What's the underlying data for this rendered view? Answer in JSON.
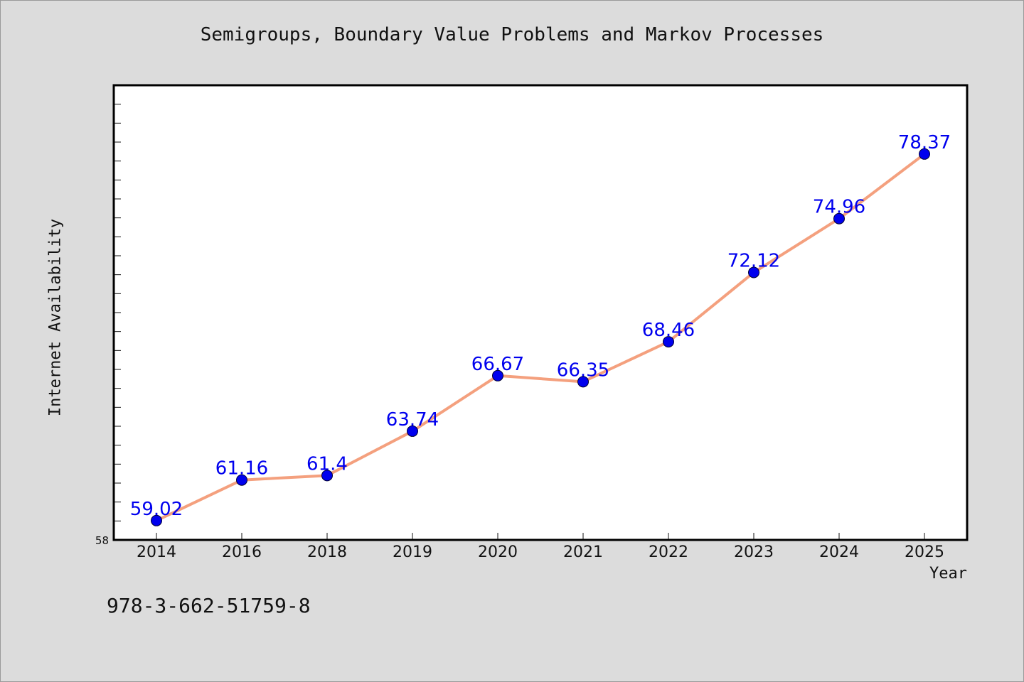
{
  "isbn": "978-3-662-51759-8",
  "chart_data": {
    "type": "line",
    "title": "Semigroups, Boundary Value Problems and Markov Processes",
    "xlabel": "Year",
    "ylabel": "Internet Availability",
    "categories": [
      "2014",
      "2016",
      "2018",
      "2019",
      "2020",
      "2021",
      "2022",
      "2023",
      "2024",
      "2025"
    ],
    "series": [
      {
        "values": [
          59.02,
          61.16,
          61.4,
          63.74,
          66.67,
          66.35,
          68.46,
          72.12,
          74.96,
          78.37
        ],
        "line_color": "#f4a07e",
        "marker_color": "#0000ee"
      }
    ],
    "data_labels": [
      "59.02",
      "61.16",
      "61.4",
      "63.74",
      "66.67",
      "66.35",
      "68.46",
      "72.12",
      "74.96",
      "78.37"
    ],
    "ylim": [
      58,
      82
    ],
    "y_tick_labels": [
      "58"
    ],
    "grid": false,
    "legend": "none"
  }
}
